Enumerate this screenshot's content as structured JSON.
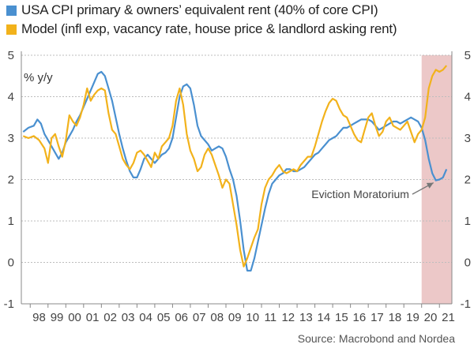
{
  "chart_data": {
    "type": "line",
    "legend": [
      {
        "name": "USA CPI primary & owners’ equivalent rent (40% of core CPI)",
        "color": "#4a90d0"
      },
      {
        "name": "Model (infl exp, vacancy rate, house price & landlord asking rent)",
        "color": "#f2b21b"
      }
    ],
    "unit_label": "% y/y",
    "ylim": [
      -1,
      5
    ],
    "yticks": [
      "-1",
      "0",
      "1",
      "2",
      "3",
      "4",
      "5"
    ],
    "xlim": [
      1997.5,
      2021.7
    ],
    "xticks": [
      "98",
      "99",
      "00",
      "01",
      "02",
      "03",
      "04",
      "05",
      "06",
      "07",
      "08",
      "09",
      "10",
      "11",
      "12",
      "13",
      "14",
      "15",
      "16",
      "17",
      "18",
      "19",
      "20",
      "21"
    ],
    "shaded_region": {
      "x_start": 2020.0,
      "x_end": 2021.7,
      "color": "#ecc8c8"
    },
    "annotation": {
      "text": "Eviction Moratorium",
      "x": 2019.3,
      "y": 1.55,
      "arrow_to": {
        "x": 2020.8,
        "y": 1.98
      }
    },
    "source": "Source: Macrobond and Nordea",
    "series": [
      {
        "name": "USA CPI primary & owners’ equivalent rent",
        "color": "#4a90d0",
        "points": [
          [
            1997.6,
            3.15
          ],
          [
            1997.9,
            3.25
          ],
          [
            1998.2,
            3.3
          ],
          [
            1998.4,
            3.45
          ],
          [
            1998.6,
            3.35
          ],
          [
            1998.8,
            3.1
          ],
          [
            1999.0,
            2.95
          ],
          [
            1999.2,
            2.8
          ],
          [
            1999.4,
            2.65
          ],
          [
            1999.6,
            2.5
          ],
          [
            1999.8,
            2.65
          ],
          [
            2000.0,
            2.9
          ],
          [
            2000.2,
            3.05
          ],
          [
            2000.4,
            3.2
          ],
          [
            2000.6,
            3.4
          ],
          [
            2000.8,
            3.55
          ],
          [
            2001.0,
            3.75
          ],
          [
            2001.2,
            3.95
          ],
          [
            2001.4,
            4.15
          ],
          [
            2001.6,
            4.35
          ],
          [
            2001.8,
            4.55
          ],
          [
            2002.0,
            4.6
          ],
          [
            2002.2,
            4.5
          ],
          [
            2002.4,
            4.2
          ],
          [
            2002.6,
            3.9
          ],
          [
            2002.8,
            3.5
          ],
          [
            2003.0,
            3.1
          ],
          [
            2003.2,
            2.75
          ],
          [
            2003.4,
            2.45
          ],
          [
            2003.6,
            2.2
          ],
          [
            2003.8,
            2.05
          ],
          [
            2004.0,
            2.05
          ],
          [
            2004.2,
            2.25
          ],
          [
            2004.4,
            2.5
          ],
          [
            2004.6,
            2.6
          ],
          [
            2004.8,
            2.5
          ],
          [
            2005.0,
            2.4
          ],
          [
            2005.2,
            2.5
          ],
          [
            2005.4,
            2.6
          ],
          [
            2005.6,
            2.65
          ],
          [
            2005.8,
            2.75
          ],
          [
            2006.0,
            3.0
          ],
          [
            2006.2,
            3.5
          ],
          [
            2006.4,
            4.0
          ],
          [
            2006.6,
            4.25
          ],
          [
            2006.8,
            4.3
          ],
          [
            2007.0,
            4.2
          ],
          [
            2007.2,
            3.8
          ],
          [
            2007.4,
            3.3
          ],
          [
            2007.6,
            3.05
          ],
          [
            2007.8,
            2.95
          ],
          [
            2008.0,
            2.85
          ],
          [
            2008.2,
            2.7
          ],
          [
            2008.4,
            2.75
          ],
          [
            2008.6,
            2.8
          ],
          [
            2008.8,
            2.75
          ],
          [
            2009.0,
            2.55
          ],
          [
            2009.2,
            2.25
          ],
          [
            2009.4,
            2.0
          ],
          [
            2009.6,
            1.6
          ],
          [
            2009.8,
            1.0
          ],
          [
            2010.0,
            0.3
          ],
          [
            2010.2,
            -0.2
          ],
          [
            2010.4,
            -0.2
          ],
          [
            2010.6,
            0.1
          ],
          [
            2010.8,
            0.5
          ],
          [
            2011.0,
            0.9
          ],
          [
            2011.2,
            1.3
          ],
          [
            2011.4,
            1.65
          ],
          [
            2011.6,
            1.9
          ],
          [
            2011.8,
            2.0
          ],
          [
            2012.0,
            2.1
          ],
          [
            2012.2,
            2.15
          ],
          [
            2012.4,
            2.25
          ],
          [
            2012.6,
            2.25
          ],
          [
            2012.8,
            2.2
          ],
          [
            2013.0,
            2.2
          ],
          [
            2013.2,
            2.25
          ],
          [
            2013.4,
            2.3
          ],
          [
            2013.6,
            2.4
          ],
          [
            2013.8,
            2.5
          ],
          [
            2014.0,
            2.6
          ],
          [
            2014.2,
            2.65
          ],
          [
            2014.4,
            2.75
          ],
          [
            2014.6,
            2.85
          ],
          [
            2014.8,
            2.95
          ],
          [
            2015.0,
            3.0
          ],
          [
            2015.2,
            3.05
          ],
          [
            2015.4,
            3.15
          ],
          [
            2015.6,
            3.25
          ],
          [
            2015.8,
            3.25
          ],
          [
            2016.0,
            3.3
          ],
          [
            2016.2,
            3.35
          ],
          [
            2016.4,
            3.4
          ],
          [
            2016.6,
            3.45
          ],
          [
            2016.8,
            3.45
          ],
          [
            2017.0,
            3.45
          ],
          [
            2017.2,
            3.4
          ],
          [
            2017.4,
            3.3
          ],
          [
            2017.6,
            3.2
          ],
          [
            2017.8,
            3.25
          ],
          [
            2018.0,
            3.3
          ],
          [
            2018.2,
            3.35
          ],
          [
            2018.4,
            3.4
          ],
          [
            2018.6,
            3.4
          ],
          [
            2018.8,
            3.35
          ],
          [
            2019.0,
            3.4
          ],
          [
            2019.2,
            3.45
          ],
          [
            2019.4,
            3.5
          ],
          [
            2019.6,
            3.45
          ],
          [
            2019.8,
            3.4
          ],
          [
            2020.0,
            3.25
          ],
          [
            2020.2,
            2.95
          ],
          [
            2020.4,
            2.5
          ],
          [
            2020.6,
            2.15
          ],
          [
            2020.8,
            1.98
          ],
          [
            2021.0,
            2.0
          ],
          [
            2021.2,
            2.05
          ],
          [
            2021.4,
            2.25
          ]
        ]
      },
      {
        "name": "Model",
        "color": "#f2b21b",
        "points": [
          [
            1997.6,
            3.05
          ],
          [
            1997.9,
            3.0
          ],
          [
            1998.2,
            3.05
          ],
          [
            1998.5,
            2.95
          ],
          [
            1998.8,
            2.75
          ],
          [
            1999.0,
            2.4
          ],
          [
            1999.2,
            3.0
          ],
          [
            1999.4,
            3.1
          ],
          [
            1999.6,
            2.8
          ],
          [
            1999.8,
            2.55
          ],
          [
            2000.0,
            2.95
          ],
          [
            2000.2,
            3.55
          ],
          [
            2000.4,
            3.4
          ],
          [
            2000.6,
            3.3
          ],
          [
            2000.8,
            3.5
          ],
          [
            2001.0,
            3.8
          ],
          [
            2001.2,
            4.2
          ],
          [
            2001.4,
            3.9
          ],
          [
            2001.6,
            4.05
          ],
          [
            2001.8,
            4.15
          ],
          [
            2002.0,
            4.2
          ],
          [
            2002.2,
            4.15
          ],
          [
            2002.4,
            3.6
          ],
          [
            2002.6,
            3.2
          ],
          [
            2002.8,
            3.1
          ],
          [
            2003.0,
            2.8
          ],
          [
            2003.2,
            2.5
          ],
          [
            2003.4,
            2.35
          ],
          [
            2003.6,
            2.25
          ],
          [
            2003.8,
            2.4
          ],
          [
            2004.0,
            2.65
          ],
          [
            2004.2,
            2.7
          ],
          [
            2004.4,
            2.6
          ],
          [
            2004.6,
            2.45
          ],
          [
            2004.8,
            2.3
          ],
          [
            2005.0,
            2.65
          ],
          [
            2005.2,
            2.5
          ],
          [
            2005.4,
            2.8
          ],
          [
            2005.6,
            2.9
          ],
          [
            2005.8,
            3.0
          ],
          [
            2006.0,
            3.3
          ],
          [
            2006.2,
            3.9
          ],
          [
            2006.4,
            4.2
          ],
          [
            2006.6,
            3.8
          ],
          [
            2006.8,
            3.1
          ],
          [
            2007.0,
            2.7
          ],
          [
            2007.2,
            2.5
          ],
          [
            2007.4,
            2.2
          ],
          [
            2007.6,
            2.3
          ],
          [
            2007.8,
            2.6
          ],
          [
            2008.0,
            2.75
          ],
          [
            2008.2,
            2.6
          ],
          [
            2008.4,
            2.35
          ],
          [
            2008.6,
            2.1
          ],
          [
            2008.8,
            1.8
          ],
          [
            2009.0,
            2.0
          ],
          [
            2009.2,
            1.9
          ],
          [
            2009.4,
            1.4
          ],
          [
            2009.6,
            0.9
          ],
          [
            2009.8,
            0.3
          ],
          [
            2010.0,
            -0.1
          ],
          [
            2010.2,
            0.1
          ],
          [
            2010.4,
            0.35
          ],
          [
            2010.6,
            0.6
          ],
          [
            2010.8,
            0.8
          ],
          [
            2011.0,
            1.4
          ],
          [
            2011.2,
            1.8
          ],
          [
            2011.4,
            2.0
          ],
          [
            2011.6,
            2.1
          ],
          [
            2011.8,
            2.25
          ],
          [
            2012.0,
            2.35
          ],
          [
            2012.2,
            2.2
          ],
          [
            2012.4,
            2.15
          ],
          [
            2012.6,
            2.2
          ],
          [
            2012.8,
            2.25
          ],
          [
            2013.0,
            2.2
          ],
          [
            2013.2,
            2.35
          ],
          [
            2013.4,
            2.45
          ],
          [
            2013.6,
            2.55
          ],
          [
            2013.8,
            2.55
          ],
          [
            2014.0,
            2.8
          ],
          [
            2014.2,
            3.1
          ],
          [
            2014.4,
            3.4
          ],
          [
            2014.6,
            3.65
          ],
          [
            2014.8,
            3.85
          ],
          [
            2015.0,
            3.95
          ],
          [
            2015.2,
            3.9
          ],
          [
            2015.4,
            3.7
          ],
          [
            2015.6,
            3.55
          ],
          [
            2015.8,
            3.5
          ],
          [
            2016.0,
            3.3
          ],
          [
            2016.2,
            3.1
          ],
          [
            2016.4,
            2.95
          ],
          [
            2016.6,
            2.9
          ],
          [
            2016.8,
            3.2
          ],
          [
            2017.0,
            3.5
          ],
          [
            2017.2,
            3.6
          ],
          [
            2017.4,
            3.3
          ],
          [
            2017.6,
            3.05
          ],
          [
            2017.8,
            3.15
          ],
          [
            2018.0,
            3.4
          ],
          [
            2018.2,
            3.5
          ],
          [
            2018.4,
            3.3
          ],
          [
            2018.6,
            3.25
          ],
          [
            2018.8,
            3.2
          ],
          [
            2019.0,
            3.3
          ],
          [
            2019.2,
            3.4
          ],
          [
            2019.4,
            3.15
          ],
          [
            2019.6,
            2.9
          ],
          [
            2019.8,
            3.1
          ],
          [
            2020.0,
            3.2
          ],
          [
            2020.2,
            3.5
          ],
          [
            2020.4,
            4.2
          ],
          [
            2020.6,
            4.5
          ],
          [
            2020.8,
            4.65
          ],
          [
            2021.0,
            4.6
          ],
          [
            2021.2,
            4.65
          ],
          [
            2021.4,
            4.75
          ]
        ]
      }
    ]
  }
}
